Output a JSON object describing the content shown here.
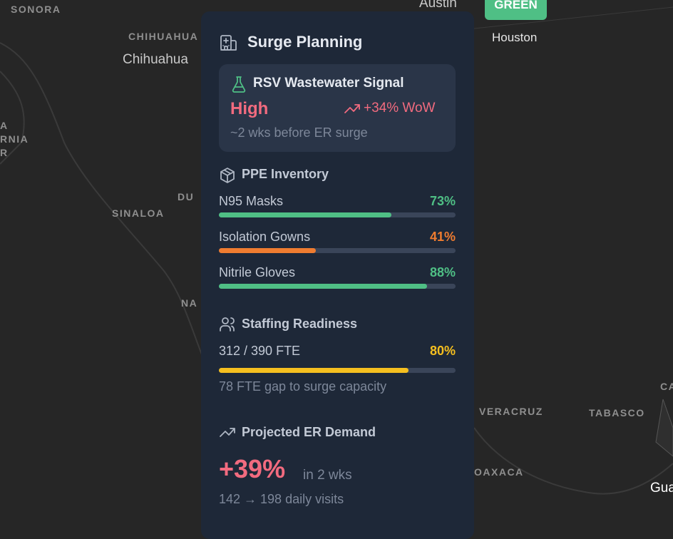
{
  "map": {
    "labels": [
      "SONORA",
      "CHIHUAHUA",
      "Chihuahua",
      "A",
      "RNIA",
      "R",
      "DU",
      "SINALOA",
      "NA",
      "VERACRUZ",
      "TABASCO",
      "OAXACA",
      "CA",
      "Gua",
      "Austin",
      "Houston"
    ],
    "badge": "GREEN"
  },
  "panel": {
    "title": "Surge Planning",
    "signal": {
      "title": "RSV Wastewater Signal",
      "level": "High",
      "change": "+34% WoW",
      "note": "~2 wks before ER surge"
    },
    "ppe": {
      "title": "PPE Inventory",
      "items": [
        {
          "name": "N95 Masks",
          "value": 73,
          "value_label": "73%",
          "color": "#4fbf85"
        },
        {
          "name": "Isolation Gowns",
          "value": 41,
          "value_label": "41%",
          "color": "#ef7c30"
        },
        {
          "name": "Nitrile Gloves",
          "value": 88,
          "value_label": "88%",
          "color": "#4fbf85"
        }
      ]
    },
    "staffing": {
      "title": "Staffing Readiness",
      "count": "312 / 390 FTE",
      "value": 80,
      "value_label": "80%",
      "color": "#f5bf1f",
      "note": "78 FTE gap to surge capacity"
    },
    "demand": {
      "title": "Projected ER Demand",
      "change": "+39%",
      "horizon": "in 2 wks",
      "visits": "142 → 198 daily visits"
    }
  }
}
